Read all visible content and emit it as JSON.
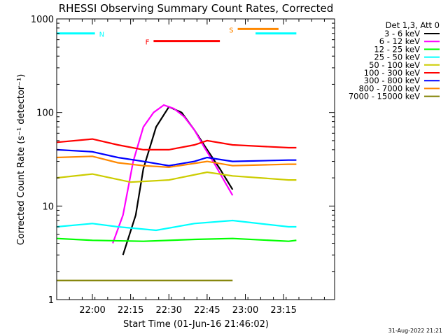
{
  "chart_data": {
    "type": "line",
    "title": "RHESSI Observing Summary Count Rates, Corrected",
    "xlabel": "Start Time (01-Jun-16 21:46:02)",
    "ylabel": "Corrected Count Rate (s⁻¹ detector⁻¹)",
    "yscale": "log",
    "ylim": [
      1,
      1000
    ],
    "xlim": [
      "21:46",
      "23:35"
    ],
    "x_ticks": [
      "22:00",
      "22:15",
      "22:30",
      "22:45",
      "23:00",
      "23:15"
    ],
    "y_ticks": [
      "1",
      "10",
      "100",
      "1000"
    ],
    "legend_title": "Det 1,3, Att 0",
    "legend_position": "right",
    "series": [
      {
        "name": "3 - 6 keV",
        "color": "#000000",
        "points": [
          [
            "22:12",
            3
          ],
          [
            "22:17",
            8
          ],
          [
            "22:20",
            25
          ],
          [
            "22:25",
            70
          ],
          [
            "22:30",
            115
          ],
          [
            "22:35",
            100
          ],
          [
            "22:40",
            65
          ],
          [
            "22:45",
            40
          ],
          [
            "22:50",
            25
          ],
          [
            "22:55",
            15
          ]
        ]
      },
      {
        "name": "6 - 12 keV",
        "color": "#ff00ff",
        "points": [
          [
            "22:08",
            4
          ],
          [
            "22:12",
            8
          ],
          [
            "22:16",
            30
          ],
          [
            "22:20",
            70
          ],
          [
            "22:24",
            100
          ],
          [
            "22:28",
            120
          ],
          [
            "22:32",
            110
          ],
          [
            "22:36",
            90
          ],
          [
            "22:40",
            65
          ],
          [
            "22:44",
            42
          ],
          [
            "22:48",
            28
          ],
          [
            "22:52",
            18
          ],
          [
            "22:55",
            13
          ]
        ]
      },
      {
        "name": "12 - 25 keV",
        "color": "#00ff00",
        "points": [
          [
            "21:46",
            4.5
          ],
          [
            "22:00",
            4.3
          ],
          [
            "22:20",
            4.2
          ],
          [
            "22:40",
            4.4
          ],
          [
            "22:55",
            4.5
          ],
          [
            "23:17",
            4.2
          ],
          [
            "23:20",
            4.3
          ]
        ]
      },
      {
        "name": "25 - 50 keV",
        "color": "#00ffff",
        "points": [
          [
            "21:46",
            6
          ],
          [
            "22:00",
            6.5
          ],
          [
            "22:10",
            6
          ],
          [
            "22:25",
            5.5
          ],
          [
            "22:40",
            6.5
          ],
          [
            "22:55",
            7
          ],
          [
            "23:17",
            6
          ],
          [
            "23:20",
            6
          ]
        ]
      },
      {
        "name": "50 - 100 keV",
        "color": "#cccc00",
        "points": [
          [
            "21:46",
            20
          ],
          [
            "22:00",
            22
          ],
          [
            "22:15",
            18
          ],
          [
            "22:30",
            19
          ],
          [
            "22:45",
            23
          ],
          [
            "22:55",
            21
          ],
          [
            "23:17",
            19
          ],
          [
            "23:20",
            19
          ]
        ]
      },
      {
        "name": "100 - 300 keV",
        "color": "#ff0000",
        "points": [
          [
            "21:46",
            48
          ],
          [
            "22:00",
            52
          ],
          [
            "22:10",
            45
          ],
          [
            "22:20",
            40
          ],
          [
            "22:30",
            40
          ],
          [
            "22:40",
            45
          ],
          [
            "22:45",
            50
          ],
          [
            "22:55",
            45
          ],
          [
            "23:17",
            42
          ],
          [
            "23:20",
            42
          ]
        ]
      },
      {
        "name": "300 - 800 keV",
        "color": "#0000ff",
        "points": [
          [
            "21:46",
            40
          ],
          [
            "22:00",
            38
          ],
          [
            "22:10",
            33
          ],
          [
            "22:20",
            30
          ],
          [
            "22:30",
            27
          ],
          [
            "22:40",
            30
          ],
          [
            "22:45",
            33
          ],
          [
            "22:55",
            30
          ],
          [
            "23:17",
            31
          ],
          [
            "23:20",
            31
          ]
        ]
      },
      {
        "name": "800 - 7000 keV",
        "color": "#ff8800",
        "points": [
          [
            "21:46",
            33
          ],
          [
            "22:00",
            34
          ],
          [
            "22:10",
            29
          ],
          [
            "22:20",
            27
          ],
          [
            "22:30",
            26
          ],
          [
            "22:45",
            30
          ],
          [
            "22:55",
            27
          ],
          [
            "23:17",
            28
          ],
          [
            "23:20",
            28
          ]
        ]
      },
      {
        "name": "7000 - 15000 keV",
        "color": "#808000",
        "points": [
          [
            "21:46",
            1.6
          ],
          [
            "22:00",
            1.6
          ],
          [
            "22:20",
            1.6
          ],
          [
            "22:40",
            1.6
          ],
          [
            "22:55",
            1.6
          ]
        ]
      }
    ],
    "annotations": [
      {
        "label": "N",
        "color": "#00ffff",
        "y": 700,
        "x_start": "21:46",
        "x_end": "22:01"
      },
      {
        "label": "F",
        "color": "#ff0000",
        "y": 580,
        "x_start": "22:24",
        "x_end": "22:50"
      },
      {
        "label": "S",
        "color": "#ff8800",
        "y": 780,
        "x_start": "22:57",
        "x_end": "23:13"
      },
      {
        "label": "",
        "color": "#00ffff",
        "y": 700,
        "x_start": "23:04",
        "x_end": "23:20"
      }
    ],
    "footer_date": "31-Aug-2022 21:21"
  }
}
